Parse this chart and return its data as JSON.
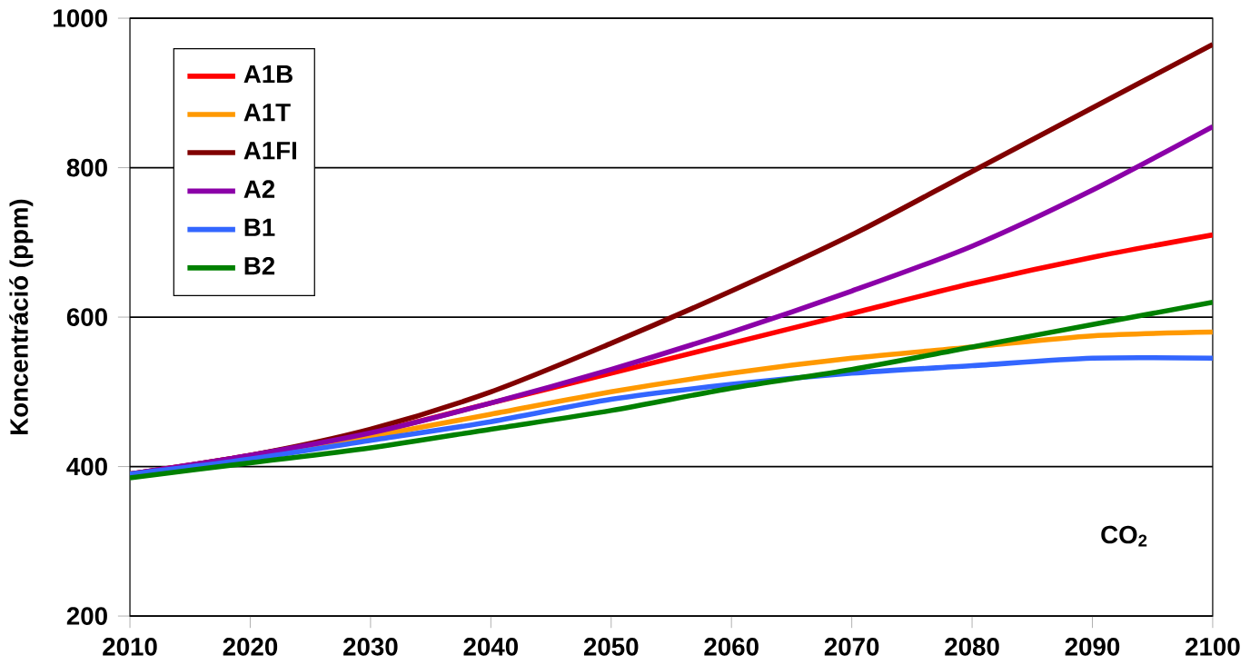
{
  "chart_data": {
    "type": "line",
    "ylabel": "Koncentráció (ppm)",
    "x": [
      2010,
      2020,
      2030,
      2040,
      2050,
      2060,
      2070,
      2080,
      2090,
      2100
    ],
    "series": [
      {
        "name": "A1B",
        "color": "#ff0000",
        "values": [
          390,
          415,
          445,
          485,
          525,
          565,
          605,
          645,
          680,
          710
        ]
      },
      {
        "name": "A1T",
        "color": "#ff9900",
        "values": [
          390,
          410,
          440,
          470,
          500,
          525,
          545,
          560,
          575,
          580
        ]
      },
      {
        "name": "A1FI",
        "color": "#800000",
        "values": [
          390,
          415,
          450,
          500,
          565,
          635,
          710,
          795,
          880,
          965
        ]
      },
      {
        "name": "A2",
        "color": "#8b00a8",
        "values": [
          390,
          415,
          445,
          485,
          530,
          580,
          635,
          695,
          770,
          855
        ]
      },
      {
        "name": "B1",
        "color": "#3366ff",
        "values": [
          390,
          410,
          435,
          460,
          490,
          510,
          525,
          535,
          545,
          545
        ]
      },
      {
        "name": "B2",
        "color": "#008000",
        "values": [
          385,
          405,
          425,
          450,
          475,
          505,
          530,
          560,
          590,
          620
        ]
      }
    ],
    "xlim": [
      2010,
      2100
    ],
    "xticks": [
      2010,
      2020,
      2030,
      2040,
      2050,
      2060,
      2070,
      2080,
      2090,
      2100
    ],
    "ylim": [
      200,
      1000
    ],
    "yticks": [
      200,
      400,
      600,
      800,
      1000
    ],
    "grid": "y",
    "legend": "top left",
    "marker": "none",
    "line_style": "solid",
    "annotations": [
      "CO$_{2}$"
    ]
  }
}
